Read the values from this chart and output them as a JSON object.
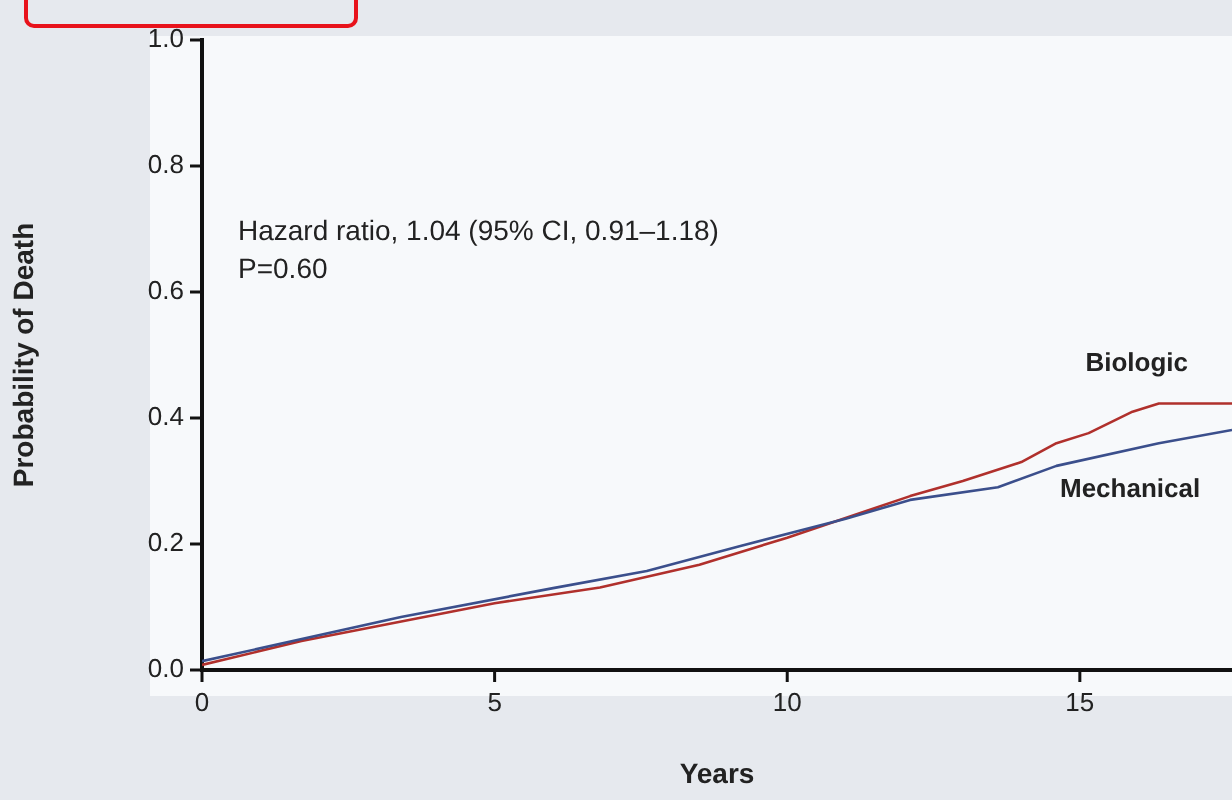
{
  "chart_data": {
    "type": "line",
    "xlabel": "Years",
    "ylabel": "Probability of Death",
    "annotations": [
      "Hazard ratio, 1.04 (95% CI, 0.91–1.18)",
      "P=0.60"
    ],
    "xlim": [
      0,
      17.6
    ],
    "xticks": [
      0,
      5,
      10,
      15
    ],
    "ylim": [
      0,
      1
    ],
    "yticks": [
      {
        "value": 0,
        "label": "0.0"
      },
      {
        "value": 0.2,
        "label": "0.2"
      },
      {
        "value": 0.4,
        "label": "0.4"
      },
      {
        "value": 0.6,
        "label": "0.6"
      },
      {
        "value": 0.8,
        "label": "0.8"
      },
      {
        "value": 1,
        "label": "1.0"
      }
    ],
    "grid": false,
    "legend": false,
    "marker": "none",
    "line_style": "solid",
    "series": [
      {
        "name": "Biologic",
        "color": "#b0302c",
        "x": [
          0,
          1.7,
          5,
          6.8,
          8.5,
          10,
          12.1,
          13,
          14,
          14.6,
          15.15,
          15.9,
          16.35,
          17.6
        ],
        "values": [
          0.008,
          0.046,
          0.106,
          0.131,
          0.167,
          0.21,
          0.276,
          0.3,
          0.33,
          0.36,
          0.376,
          0.41,
          0.423,
          0.423
        ]
      },
      {
        "name": "Mechanical",
        "color": "#3b4f8c",
        "x": [
          0,
          3.4,
          6,
          7.6,
          9.2,
          11,
          12.1,
          13.6,
          14.6,
          16.35,
          17.6
        ],
        "values": [
          0.014,
          0.084,
          0.13,
          0.157,
          0.197,
          0.24,
          0.27,
          0.29,
          0.324,
          0.36,
          0.381
        ]
      }
    ]
  }
}
